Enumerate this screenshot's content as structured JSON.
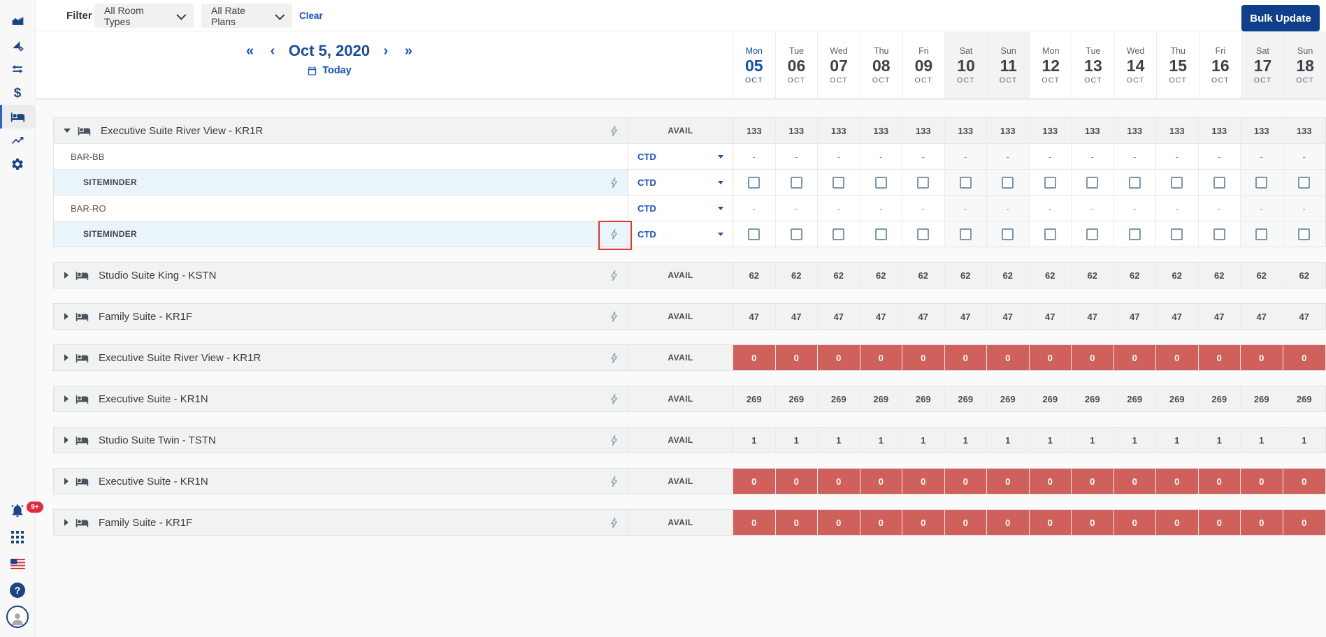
{
  "brand_colors": {
    "accent_blue": "#1553c2",
    "navy_button": "#0e3f8a",
    "date_navy": "#174f9c",
    "red_cell": "#d0605c",
    "highlight_red": "#e2372b",
    "badge_red": "#e12b45",
    "sidebar_icon": "#1b4484",
    "light_blue_row": "#e9f5fa"
  },
  "sidebar": {
    "top_icons": [
      {
        "name": "dashboard-chart-icon",
        "active": false
      },
      {
        "name": "distribution-settings-icon",
        "active": false
      },
      {
        "name": "channels-swap-icon",
        "active": false
      },
      {
        "name": "rates-dollar-icon",
        "active": false
      },
      {
        "name": "inventory-bed-icon",
        "active": true
      },
      {
        "name": "insights-trend-icon",
        "active": false
      },
      {
        "name": "settings-gear-icon",
        "active": false
      }
    ],
    "notification_badge": "9+",
    "bottom_icons": [
      {
        "name": "notifications-bell-icon"
      },
      {
        "name": "apps-grid-icon"
      },
      {
        "name": "language-flag-icon"
      },
      {
        "name": "help-icon"
      },
      {
        "name": "user-avatar"
      }
    ]
  },
  "toolbar": {
    "filter_label": "Filter",
    "room_types_value": "All Room Types",
    "rate_plans_value": "All Rate Plans",
    "clear_label": "Clear",
    "bulk_update_label": "Bulk Update"
  },
  "calendar": {
    "current_date": "Oct 5, 2020",
    "today_label": "Today",
    "prev_fast": "«",
    "prev": "‹",
    "next": "›",
    "next_fast": "»",
    "columns": [
      {
        "day": "Mon",
        "num": "05",
        "month": "OCT",
        "weekend": false,
        "today": true
      },
      {
        "day": "Tue",
        "num": "06",
        "month": "OCT",
        "weekend": false,
        "today": false
      },
      {
        "day": "Wed",
        "num": "07",
        "month": "OCT",
        "weekend": false,
        "today": false
      },
      {
        "day": "Thu",
        "num": "08",
        "month": "OCT",
        "weekend": false,
        "today": false
      },
      {
        "day": "Fri",
        "num": "09",
        "month": "OCT",
        "weekend": false,
        "today": false
      },
      {
        "day": "Sat",
        "num": "10",
        "month": "OCT",
        "weekend": true,
        "today": false
      },
      {
        "day": "Sun",
        "num": "11",
        "month": "OCT",
        "weekend": true,
        "today": false
      },
      {
        "day": "Mon",
        "num": "12",
        "month": "OCT",
        "weekend": false,
        "today": false
      },
      {
        "day": "Tue",
        "num": "13",
        "month": "OCT",
        "weekend": false,
        "today": false
      },
      {
        "day": "Wed",
        "num": "14",
        "month": "OCT",
        "weekend": false,
        "today": false
      },
      {
        "day": "Thu",
        "num": "15",
        "month": "OCT",
        "weekend": false,
        "today": false
      },
      {
        "day": "Fri",
        "num": "16",
        "month": "OCT",
        "weekend": false,
        "today": false
      },
      {
        "day": "Sat",
        "num": "17",
        "month": "OCT",
        "weekend": true,
        "today": false
      },
      {
        "day": "Sun",
        "num": "18",
        "month": "OCT",
        "weekend": true,
        "today": false
      }
    ]
  },
  "table": {
    "avail_label": "AVAIL",
    "groups": [
      {
        "name": "Executive Suite River View - KR1R",
        "expanded": true,
        "zero": false,
        "avail": [
          "133",
          "133",
          "133",
          "133",
          "133",
          "133",
          "133",
          "133",
          "133",
          "133",
          "133",
          "133",
          "133",
          "133"
        ],
        "children": [
          {
            "kind": "rate-plan",
            "label": "BAR-BB",
            "select": "CTD",
            "cell": "dash",
            "highlighted": false
          },
          {
            "kind": "channel",
            "label": "SITEMINDER",
            "select": "CTD",
            "cell": "checkbox",
            "highlighted": false
          },
          {
            "kind": "rate-plan",
            "label": "BAR-RO",
            "select": "CTD",
            "cell": "dash",
            "highlighted": false
          },
          {
            "kind": "channel",
            "label": "SITEMINDER",
            "select": "CTD",
            "cell": "checkbox",
            "highlighted": true
          }
        ]
      },
      {
        "name": "Studio Suite King - KSTN",
        "expanded": false,
        "zero": false,
        "avail": [
          "62",
          "62",
          "62",
          "62",
          "62",
          "62",
          "62",
          "62",
          "62",
          "62",
          "62",
          "62",
          "62",
          "62"
        ],
        "children": []
      },
      {
        "name": "Family Suite - KR1F",
        "expanded": false,
        "zero": false,
        "avail": [
          "47",
          "47",
          "47",
          "47",
          "47",
          "47",
          "47",
          "47",
          "47",
          "47",
          "47",
          "47",
          "47",
          "47"
        ],
        "children": []
      },
      {
        "name": "Executive Suite River View - KR1R",
        "expanded": false,
        "zero": true,
        "avail": [
          "0",
          "0",
          "0",
          "0",
          "0",
          "0",
          "0",
          "0",
          "0",
          "0",
          "0",
          "0",
          "0",
          "0"
        ],
        "children": []
      },
      {
        "name": "Executive Suite - KR1N",
        "expanded": false,
        "zero": false,
        "avail": [
          "269",
          "269",
          "269",
          "269",
          "269",
          "269",
          "269",
          "269",
          "269",
          "269",
          "269",
          "269",
          "269",
          "269"
        ],
        "children": []
      },
      {
        "name": "Studio Suite Twin - TSTN",
        "expanded": false,
        "zero": false,
        "avail": [
          "1",
          "1",
          "1",
          "1",
          "1",
          "1",
          "1",
          "1",
          "1",
          "1",
          "1",
          "1",
          "1",
          "1"
        ],
        "children": []
      },
      {
        "name": "Executive Suite - KR1N",
        "expanded": false,
        "zero": true,
        "avail": [
          "0",
          "0",
          "0",
          "0",
          "0",
          "0",
          "0",
          "0",
          "0",
          "0",
          "0",
          "0",
          "0",
          "0"
        ],
        "children": []
      },
      {
        "name": "Family Suite - KR1F",
        "expanded": false,
        "zero": true,
        "avail": [
          "0",
          "0",
          "0",
          "0",
          "0",
          "0",
          "0",
          "0",
          "0",
          "0",
          "0",
          "0",
          "0",
          "0"
        ],
        "children": []
      }
    ]
  }
}
